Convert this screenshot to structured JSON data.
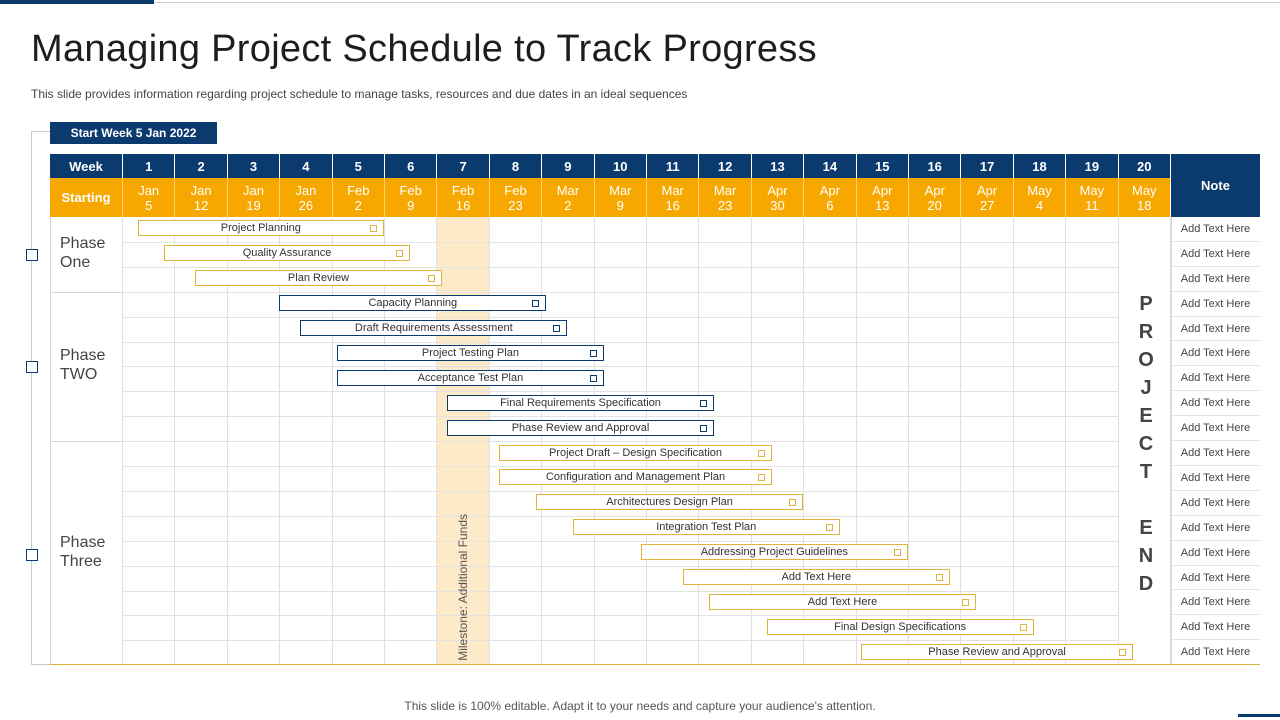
{
  "title": "Managing Project Schedule to Track Progress",
  "subtitle": "This slide provides information regarding project schedule to manage tasks, resources and due dates in an ideal sequences",
  "start_label": "Start Week 5 Jan 2022",
  "header": {
    "week_label": "Week",
    "starting_label": "Starting",
    "note_label": "Note",
    "weeks": [
      "1",
      "2",
      "3",
      "4",
      "5",
      "6",
      "7",
      "8",
      "9",
      "10",
      "11",
      "12",
      "13",
      "14",
      "15",
      "16",
      "17",
      "18",
      "19",
      "20"
    ],
    "dates": [
      {
        "m": "Jan",
        "d": "5"
      },
      {
        "m": "Jan",
        "d": "12"
      },
      {
        "m": "Jan",
        "d": "19"
      },
      {
        "m": "Jan",
        "d": "26"
      },
      {
        "m": "Feb",
        "d": "2"
      },
      {
        "m": "Feb",
        "d": "9"
      },
      {
        "m": "Feb",
        "d": "16"
      },
      {
        "m": "Feb",
        "d": "23"
      },
      {
        "m": "Mar",
        "d": "2"
      },
      {
        "m": "Mar",
        "d": "9"
      },
      {
        "m": "Mar",
        "d": "16"
      },
      {
        "m": "Mar",
        "d": "23"
      },
      {
        "m": "Apr",
        "d": "30"
      },
      {
        "m": "Apr",
        "d": "6"
      },
      {
        "m": "Apr",
        "d": "13"
      },
      {
        "m": "Apr",
        "d": "20"
      },
      {
        "m": "Apr",
        "d": "27"
      },
      {
        "m": "May",
        "d": "4"
      },
      {
        "m": "May",
        "d": "11"
      },
      {
        "m": "May",
        "d": "18"
      }
    ]
  },
  "phases": [
    {
      "line1": "Phase",
      "line2": "One"
    },
    {
      "line1": "Phase",
      "line2": "TWO"
    },
    {
      "line1": "Phase",
      "line2": "Three"
    }
  ],
  "milestone": "Milestone: Additional Funds",
  "project_end": {
    "word1": [
      "P",
      "R",
      "O",
      "J",
      "E",
      "C",
      "T"
    ],
    "word2": [
      "E",
      "N",
      "D"
    ]
  },
  "tasks": [
    {
      "label": "Project Planning",
      "start_week": 1.3,
      "end_week": 6.0,
      "color": "gold"
    },
    {
      "label": "Quality Assurance",
      "start_week": 1.8,
      "end_week": 6.5,
      "color": "gold"
    },
    {
      "label": "Plan Review",
      "start_week": 2.4,
      "end_week": 7.1,
      "color": "gold"
    },
    {
      "label": "Capacity Planning",
      "start_week": 4.0,
      "end_week": 9.1,
      "color": "navy"
    },
    {
      "label": "Draft Requirements  Assessment",
      "start_week": 4.4,
      "end_week": 9.5,
      "color": "navy"
    },
    {
      "label": "Project Testing Plan",
      "start_week": 5.1,
      "end_week": 10.2,
      "color": "navy"
    },
    {
      "label": "Acceptance Test Plan",
      "start_week": 5.1,
      "end_week": 10.2,
      "color": "navy"
    },
    {
      "label": "Final Requirements Specification",
      "start_week": 7.2,
      "end_week": 12.3,
      "color": "navy"
    },
    {
      "label": "Phase Review and Approval",
      "start_week": 7.2,
      "end_week": 12.3,
      "color": "navy"
    },
    {
      "label": "Project  Draft – Design Specification",
      "start_week": 8.2,
      "end_week": 13.4,
      "color": "gold"
    },
    {
      "label": "Configuration and Management Plan",
      "start_week": 8.2,
      "end_week": 13.4,
      "color": "gold"
    },
    {
      "label": "Architectures Design Plan",
      "start_week": 8.9,
      "end_week": 14.0,
      "color": "gold"
    },
    {
      "label": "Integration  Test Plan",
      "start_week": 9.6,
      "end_week": 14.7,
      "color": "gold"
    },
    {
      "label": "Addressing Project Guidelines",
      "start_week": 10.9,
      "end_week": 16.0,
      "color": "gold"
    },
    {
      "label": "Add Text Here",
      "start_week": 11.7,
      "end_week": 16.8,
      "color": "gold"
    },
    {
      "label": "Add Text Here",
      "start_week": 12.2,
      "end_week": 17.3,
      "color": "gold"
    },
    {
      "label": "Final Design Specifications",
      "start_week": 13.3,
      "end_week": 18.4,
      "color": "gold"
    },
    {
      "label": "Phase Review and Approval",
      "start_week": 15.1,
      "end_week": 20.3,
      "color": "gold"
    }
  ],
  "notes": [
    "Add Text Here",
    "Add Text Here",
    "Add Text Here",
    "Add Text Here",
    "Add Text Here",
    "Add Text Here",
    "Add Text Here",
    "Add Text Here",
    "Add Text Here",
    "Add Text Here",
    "Add Text Here",
    "Add Text Here",
    "Add Text Here",
    "Add Text Here",
    "Add Text Here",
    "Add Text Here",
    "Add Text Here",
    "Add Text Here"
  ],
  "footer": "This slide is 100% editable. Adapt it to your needs and capture your audience's attention."
}
